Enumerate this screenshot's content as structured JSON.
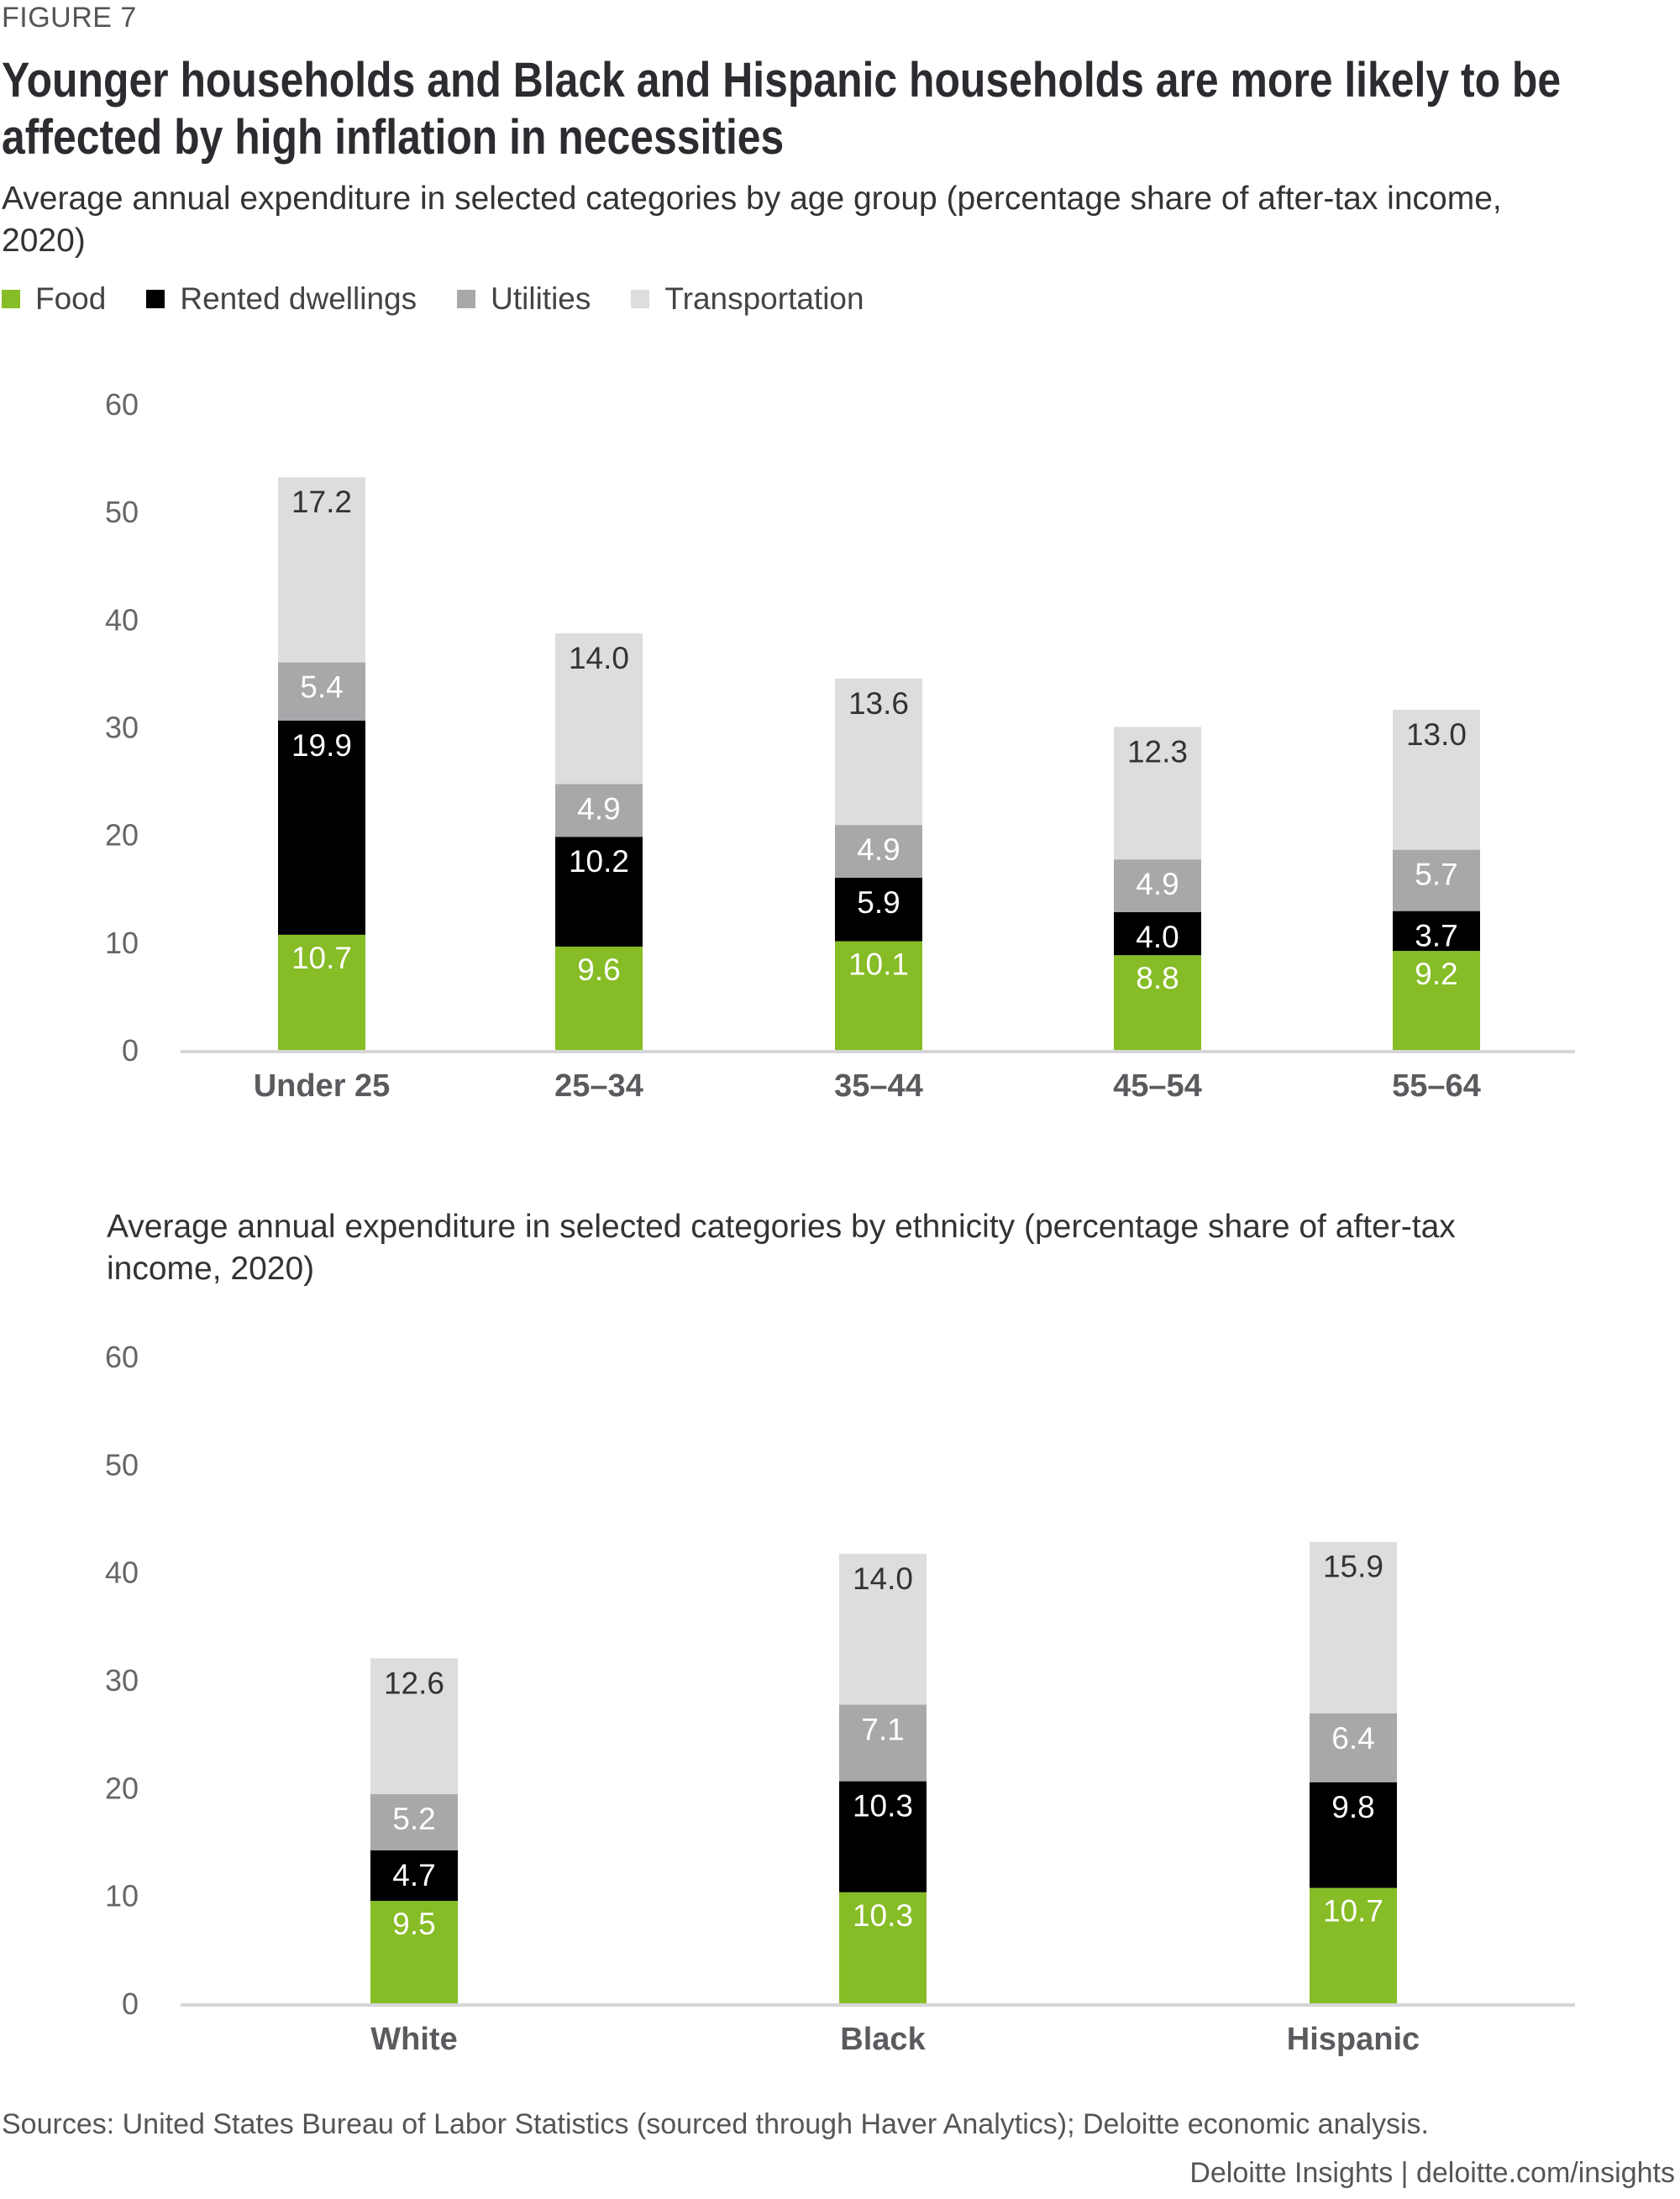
{
  "figure_label": "FIGURE 7",
  "title": "Younger households and Black and Hispanic households are more likely to be affected by high inflation in necessities",
  "legend": [
    {
      "name": "Food",
      "color": "#86bc25"
    },
    {
      "name": "Rented dwellings",
      "color": "#000000"
    },
    {
      "name": "Utilities",
      "color": "#a7a8aa"
    },
    {
      "name": "Transportation",
      "color": "#dddddf"
    }
  ],
  "chart_data": [
    {
      "type": "bar",
      "stacked": true,
      "title": "Average annual expenditure in selected categories by age group (percentage share of after-tax income, 2020)",
      "xlabel": "",
      "ylabel": "",
      "ylim": [
        0,
        60
      ],
      "yticks": [
        0,
        10,
        20,
        30,
        40,
        50,
        60
      ],
      "grid": false,
      "legend_position": "top-left",
      "categories": [
        "Under 25",
        "25–34",
        "35–44",
        "45–54",
        "55–64"
      ],
      "series": [
        {
          "name": "Food",
          "values": [
            10.7,
            9.6,
            10.1,
            8.8,
            9.2
          ]
        },
        {
          "name": "Rented dwellings",
          "values": [
            19.9,
            10.2,
            5.9,
            4.0,
            3.7
          ]
        },
        {
          "name": "Utilities",
          "values": [
            5.4,
            4.9,
            4.9,
            4.9,
            5.7
          ]
        },
        {
          "name": "Transportation",
          "values": [
            17.2,
            14.0,
            13.6,
            12.3,
            13.0
          ]
        }
      ]
    },
    {
      "type": "bar",
      "stacked": true,
      "title": "Average annual expenditure in selected categories by ethnicity (percentage share of after-tax income, 2020)",
      "xlabel": "",
      "ylabel": "",
      "ylim": [
        0,
        60
      ],
      "yticks": [
        0,
        10,
        20,
        30,
        40,
        50,
        60
      ],
      "grid": false,
      "legend_position": "top-left",
      "categories": [
        "White",
        "Black",
        "Hispanic"
      ],
      "series": [
        {
          "name": "Food",
          "values": [
            9.5,
            10.3,
            10.7
          ]
        },
        {
          "name": "Rented dwellings",
          "values": [
            4.7,
            10.3,
            9.8
          ]
        },
        {
          "name": "Utilities",
          "values": [
            5.2,
            7.1,
            6.4
          ]
        },
        {
          "name": "Transportation",
          "values": [
            12.6,
            14.0,
            15.9
          ]
        }
      ]
    }
  ],
  "footer": {
    "source": "Sources: United States Bureau of Labor Statistics (sourced through Haver Analytics); Deloitte economic analysis.",
    "brand": "Deloitte Insights | deloitte.com/insights"
  }
}
